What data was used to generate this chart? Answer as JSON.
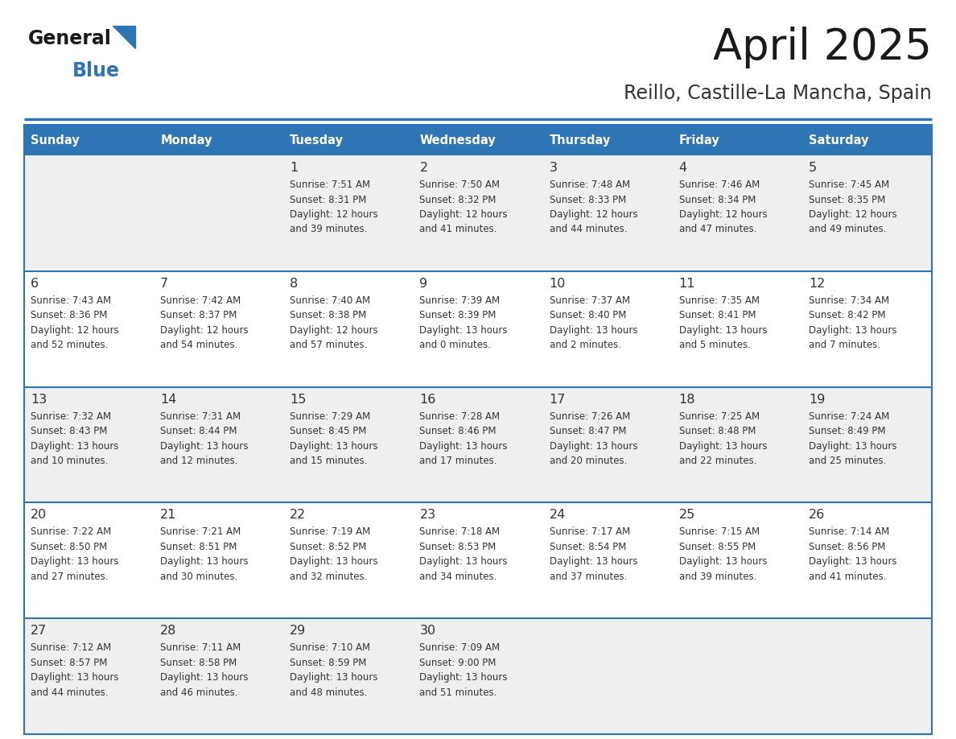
{
  "title": "April 2025",
  "subtitle": "Reillo, Castille-La Mancha, Spain",
  "days_of_week": [
    "Sunday",
    "Monday",
    "Tuesday",
    "Wednesday",
    "Thursday",
    "Friday",
    "Saturday"
  ],
  "header_bg": "#2E75B6",
  "header_text_color": "#FFFFFF",
  "row_bg_odd": "#EFEFEF",
  "row_bg_even": "#FFFFFF",
  "cell_text_color": "#333333",
  "grid_line_color": "#2E75B6",
  "title_color": "#1a1a1a",
  "subtitle_color": "#333333",
  "logo_general_color": "#1a1a1a",
  "logo_blue_color": "#2E75B6",
  "weeks": [
    [
      {
        "day": "",
        "info": ""
      },
      {
        "day": "",
        "info": ""
      },
      {
        "day": "1",
        "info": "Sunrise: 7:51 AM\nSunset: 8:31 PM\nDaylight: 12 hours\nand 39 minutes."
      },
      {
        "day": "2",
        "info": "Sunrise: 7:50 AM\nSunset: 8:32 PM\nDaylight: 12 hours\nand 41 minutes."
      },
      {
        "day": "3",
        "info": "Sunrise: 7:48 AM\nSunset: 8:33 PM\nDaylight: 12 hours\nand 44 minutes."
      },
      {
        "day": "4",
        "info": "Sunrise: 7:46 AM\nSunset: 8:34 PM\nDaylight: 12 hours\nand 47 minutes."
      },
      {
        "day": "5",
        "info": "Sunrise: 7:45 AM\nSunset: 8:35 PM\nDaylight: 12 hours\nand 49 minutes."
      }
    ],
    [
      {
        "day": "6",
        "info": "Sunrise: 7:43 AM\nSunset: 8:36 PM\nDaylight: 12 hours\nand 52 minutes."
      },
      {
        "day": "7",
        "info": "Sunrise: 7:42 AM\nSunset: 8:37 PM\nDaylight: 12 hours\nand 54 minutes."
      },
      {
        "day": "8",
        "info": "Sunrise: 7:40 AM\nSunset: 8:38 PM\nDaylight: 12 hours\nand 57 minutes."
      },
      {
        "day": "9",
        "info": "Sunrise: 7:39 AM\nSunset: 8:39 PM\nDaylight: 13 hours\nand 0 minutes."
      },
      {
        "day": "10",
        "info": "Sunrise: 7:37 AM\nSunset: 8:40 PM\nDaylight: 13 hours\nand 2 minutes."
      },
      {
        "day": "11",
        "info": "Sunrise: 7:35 AM\nSunset: 8:41 PM\nDaylight: 13 hours\nand 5 minutes."
      },
      {
        "day": "12",
        "info": "Sunrise: 7:34 AM\nSunset: 8:42 PM\nDaylight: 13 hours\nand 7 minutes."
      }
    ],
    [
      {
        "day": "13",
        "info": "Sunrise: 7:32 AM\nSunset: 8:43 PM\nDaylight: 13 hours\nand 10 minutes."
      },
      {
        "day": "14",
        "info": "Sunrise: 7:31 AM\nSunset: 8:44 PM\nDaylight: 13 hours\nand 12 minutes."
      },
      {
        "day": "15",
        "info": "Sunrise: 7:29 AM\nSunset: 8:45 PM\nDaylight: 13 hours\nand 15 minutes."
      },
      {
        "day": "16",
        "info": "Sunrise: 7:28 AM\nSunset: 8:46 PM\nDaylight: 13 hours\nand 17 minutes."
      },
      {
        "day": "17",
        "info": "Sunrise: 7:26 AM\nSunset: 8:47 PM\nDaylight: 13 hours\nand 20 minutes."
      },
      {
        "day": "18",
        "info": "Sunrise: 7:25 AM\nSunset: 8:48 PM\nDaylight: 13 hours\nand 22 minutes."
      },
      {
        "day": "19",
        "info": "Sunrise: 7:24 AM\nSunset: 8:49 PM\nDaylight: 13 hours\nand 25 minutes."
      }
    ],
    [
      {
        "day": "20",
        "info": "Sunrise: 7:22 AM\nSunset: 8:50 PM\nDaylight: 13 hours\nand 27 minutes."
      },
      {
        "day": "21",
        "info": "Sunrise: 7:21 AM\nSunset: 8:51 PM\nDaylight: 13 hours\nand 30 minutes."
      },
      {
        "day": "22",
        "info": "Sunrise: 7:19 AM\nSunset: 8:52 PM\nDaylight: 13 hours\nand 32 minutes."
      },
      {
        "day": "23",
        "info": "Sunrise: 7:18 AM\nSunset: 8:53 PM\nDaylight: 13 hours\nand 34 minutes."
      },
      {
        "day": "24",
        "info": "Sunrise: 7:17 AM\nSunset: 8:54 PM\nDaylight: 13 hours\nand 37 minutes."
      },
      {
        "day": "25",
        "info": "Sunrise: 7:15 AM\nSunset: 8:55 PM\nDaylight: 13 hours\nand 39 minutes."
      },
      {
        "day": "26",
        "info": "Sunrise: 7:14 AM\nSunset: 8:56 PM\nDaylight: 13 hours\nand 41 minutes."
      }
    ],
    [
      {
        "day": "27",
        "info": "Sunrise: 7:12 AM\nSunset: 8:57 PM\nDaylight: 13 hours\nand 44 minutes."
      },
      {
        "day": "28",
        "info": "Sunrise: 7:11 AM\nSunset: 8:58 PM\nDaylight: 13 hours\nand 46 minutes."
      },
      {
        "day": "29",
        "info": "Sunrise: 7:10 AM\nSunset: 8:59 PM\nDaylight: 13 hours\nand 48 minutes."
      },
      {
        "day": "30",
        "info": "Sunrise: 7:09 AM\nSunset: 9:00 PM\nDaylight: 13 hours\nand 51 minutes."
      },
      {
        "day": "",
        "info": ""
      },
      {
        "day": "",
        "info": ""
      },
      {
        "day": "",
        "info": ""
      }
    ]
  ]
}
